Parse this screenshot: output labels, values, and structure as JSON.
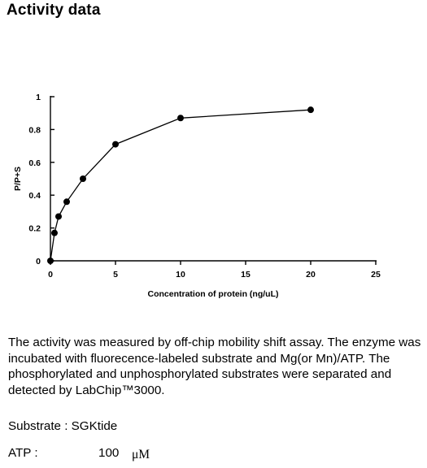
{
  "page": {
    "title": "Activity data"
  },
  "chart_data": {
    "type": "line",
    "title": "",
    "xlabel": "Concentration of protein (ng/uL)",
    "ylabel": "P/P+S",
    "xlim": [
      0,
      25
    ],
    "ylim": [
      0,
      1
    ],
    "x_ticks": [
      0,
      5,
      10,
      15,
      20,
      25
    ],
    "y_ticks": [
      0,
      0.2,
      0.4,
      0.6,
      0.8,
      1
    ],
    "x_tick_labels": [
      "0",
      "5",
      "10",
      "15",
      "20",
      "25"
    ],
    "y_tick_labels": [
      "0",
      "0.2",
      "0.4",
      "0.6",
      "0.8",
      "1"
    ],
    "grid": false,
    "legend": false,
    "series": [
      {
        "x": [
          0,
          0.3125,
          0.625,
          1.25,
          2.5,
          5,
          10,
          20
        ],
        "y": [
          0,
          0.17,
          0.27,
          0.36,
          0.5,
          0.71,
          0.87,
          0.92
        ]
      }
    ]
  },
  "description": "The activity was measured by off-chip mobility shift assay. The enzyme was incubated with fluorecence-labeled  substrate and Mg(or Mn)/ATP. The phosphorylated and unphosphorylated substrates were separated and detected by LabChip™3000.",
  "details": {
    "substrate": "Substrate : SGKtide",
    "atp_label": "ATP :",
    "atp_value": "100",
    "atp_unit": "μM"
  }
}
